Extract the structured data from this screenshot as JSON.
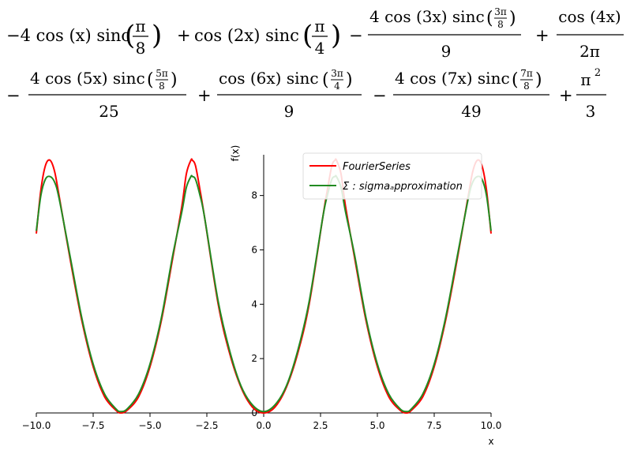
{
  "formula": {
    "line1": {
      "t1_pre": "−4 cos (x) sinc",
      "t1_frac_num": "π",
      "t1_frac_den": "8",
      "op1": "+",
      "t2_pre": "cos (2x) sinc",
      "t2_frac_num": "π",
      "t2_frac_den": "4",
      "op2": "−",
      "t3_num_pre": "4 cos (3x) sinc",
      "t3_inner_num": "3π",
      "t3_inner_den": "8",
      "t3_den": "9",
      "op3": "+",
      "t4_num": "cos (4x)",
      "t4_den": "2π"
    },
    "line2": {
      "op0": "−",
      "t5_num_pre": "4 cos (5x) sinc",
      "t5_inner_num": "5π",
      "t5_inner_den": "8",
      "t5_den": "25",
      "op1": "+",
      "t6_num_pre": "cos (6x) sinc",
      "t6_inner_num": "3π",
      "t6_inner_den": "4",
      "t6_den": "9",
      "op2": "−",
      "t7_num_pre": "4 cos (7x) sinc",
      "t7_inner_num": "7π",
      "t7_inner_den": "8",
      "t7_den": "49",
      "op3": "+",
      "t8_num": "π",
      "t8_exp": "2",
      "t8_den": "3"
    }
  },
  "chart_data": {
    "type": "line",
    "xlabel": "x",
    "ylabel": "f(x)",
    "xlim": [
      -10,
      10
    ],
    "ylim": [
      0,
      9.5
    ],
    "x_ticks": [
      "−10.0",
      "−7.5",
      "−5.0",
      "−2.5",
      "0.0",
      "2.5",
      "5.0",
      "7.5",
      "10.0"
    ],
    "x_tick_values": [
      -10,
      -7.5,
      -5,
      -2.5,
      0,
      2.5,
      5,
      7.5,
      10
    ],
    "y_ticks": [
      "0",
      "2",
      "4",
      "6",
      "8"
    ],
    "y_tick_values": [
      0,
      2,
      4,
      6,
      8
    ],
    "grid": false,
    "legend_placement": "top-right",
    "series": [
      {
        "name": "FourierSeries",
        "color": "#ff0000",
        "x": [
          -10.0,
          -9.8,
          -9.6,
          -9.4,
          -9.2,
          -9.0,
          -8.5,
          -8.0,
          -7.5,
          -7.0,
          -6.5,
          -6.28,
          -6.0,
          -5.5,
          -5.0,
          -4.5,
          -4.0,
          -3.6,
          -3.4,
          -3.2,
          -3.14,
          -3.0,
          -2.8,
          -2.6,
          -2.0,
          -1.5,
          -1.0,
          -0.5,
          0.0,
          0.5,
          1.0,
          1.5,
          2.0,
          2.6,
          2.8,
          3.0,
          3.14,
          3.2,
          3.4,
          3.6,
          4.0,
          4.5,
          5.0,
          5.5,
          6.0,
          6.28,
          6.5,
          7.0,
          7.5,
          8.0,
          8.5,
          9.0,
          9.2,
          9.4,
          9.6,
          9.8,
          10.0
        ],
        "y": [
          6.6,
          8.2,
          9.1,
          9.3,
          8.9,
          8.0,
          5.6,
          3.4,
          1.7,
          0.6,
          0.1,
          0.0,
          0.1,
          0.6,
          1.7,
          3.4,
          5.7,
          7.6,
          8.8,
          9.3,
          9.3,
          9.1,
          8.2,
          7.2,
          4.0,
          2.2,
          0.95,
          0.22,
          0.0,
          0.22,
          0.95,
          2.2,
          4.0,
          7.2,
          8.2,
          9.1,
          9.3,
          9.3,
          8.8,
          7.6,
          5.7,
          3.4,
          1.7,
          0.6,
          0.1,
          0.0,
          0.1,
          0.6,
          1.7,
          3.4,
          5.6,
          8.0,
          8.9,
          9.3,
          9.1,
          8.2,
          6.6
        ]
      },
      {
        "name": "Σ : sigmaₐpproximation",
        "color": "#228b22",
        "x": [
          -10.0,
          -9.8,
          -9.6,
          -9.4,
          -9.2,
          -9.0,
          -8.5,
          -8.0,
          -7.5,
          -7.0,
          -6.5,
          -6.28,
          -6.0,
          -5.5,
          -5.0,
          -4.5,
          -4.0,
          -3.6,
          -3.4,
          -3.2,
          -3.14,
          -3.0,
          -2.8,
          -2.6,
          -2.0,
          -1.5,
          -1.0,
          -0.5,
          0.0,
          0.5,
          1.0,
          1.5,
          2.0,
          2.6,
          2.8,
          3.0,
          3.14,
          3.2,
          3.4,
          3.6,
          4.0,
          4.5,
          5.0,
          5.5,
          6.0,
          6.28,
          6.5,
          7.0,
          7.5,
          8.0,
          8.5,
          9.0,
          9.2,
          9.4,
          9.6,
          9.8,
          10.0
        ],
        "y": [
          6.7,
          8.0,
          8.6,
          8.7,
          8.5,
          7.9,
          5.7,
          3.5,
          1.8,
          0.7,
          0.15,
          0.05,
          0.15,
          0.7,
          1.8,
          3.5,
          5.8,
          7.4,
          8.3,
          8.7,
          8.7,
          8.6,
          8.0,
          7.2,
          4.1,
          2.3,
          1.0,
          0.3,
          0.05,
          0.3,
          1.0,
          2.3,
          4.1,
          7.2,
          8.0,
          8.6,
          8.7,
          8.7,
          8.3,
          7.4,
          5.8,
          3.5,
          1.8,
          0.7,
          0.15,
          0.05,
          0.15,
          0.7,
          1.8,
          3.5,
          5.7,
          7.9,
          8.5,
          8.7,
          8.6,
          8.0,
          6.7
        ]
      }
    ]
  }
}
